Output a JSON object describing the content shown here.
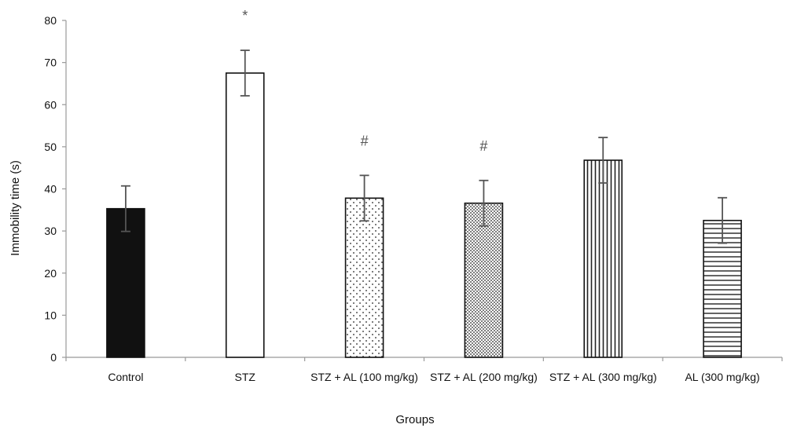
{
  "chart_data": {
    "type": "bar",
    "title": "",
    "xlabel": "Groups",
    "ylabel": "Immobility time (s)",
    "ylim": [
      0,
      80
    ],
    "yticks": [
      0,
      10,
      20,
      30,
      40,
      50,
      60,
      70,
      80
    ],
    "grid": false,
    "categories": [
      "Control",
      "STZ",
      "STZ + AL (100 mg/kg)",
      "STZ + AL (200 mg/kg)",
      "STZ + AL (300 mg/kg)",
      "AL (300 mg/kg)"
    ],
    "values": [
      35.3,
      67.5,
      37.8,
      36.6,
      46.8,
      32.5
    ],
    "errors": [
      5.4,
      5.4,
      5.4,
      5.4,
      5.4,
      5.4
    ],
    "annotations": [
      "",
      "*",
      "#",
      "#",
      "",
      ""
    ],
    "patterns": [
      "solid-black",
      "empty-white",
      "sparse-dots",
      "dense-dots",
      "vertical-lines",
      "horizontal-lines"
    ]
  }
}
